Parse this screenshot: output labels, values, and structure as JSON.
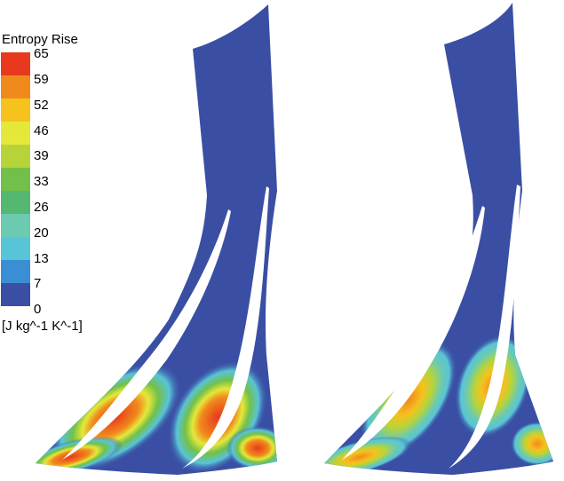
{
  "legend": {
    "title": "Entropy Rise",
    "unit": "[J kg^-1 K^-1]",
    "ticks": [
      "65",
      "59",
      "52",
      "46",
      "39",
      "33",
      "26",
      "20",
      "13",
      "7",
      "0"
    ],
    "colors": [
      "#e8391e",
      "#f08a1c",
      "#f5c21e",
      "#e5e83a",
      "#b6d43a",
      "#72c04a",
      "#54b870",
      "#6ccab0",
      "#58c4d8",
      "#3a8ed4",
      "#3a4fa4"
    ]
  },
  "panels": [
    {
      "name": "left-contour"
    },
    {
      "name": "right-contour"
    }
  ]
}
